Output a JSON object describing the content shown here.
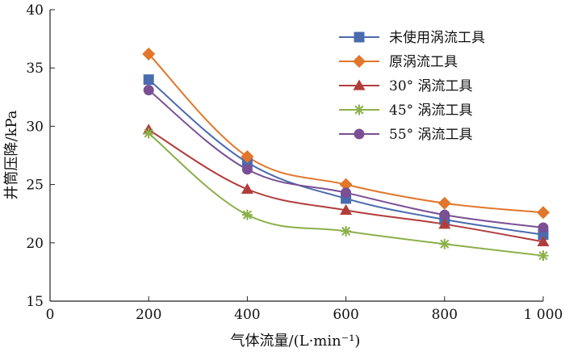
{
  "chart_data": {
    "type": "line",
    "xlabel": "气体流量/(L·min⁻¹)",
    "ylabel": "井筒压降/kPa",
    "xlim": [
      0,
      1000
    ],
    "ylim": [
      15,
      40
    ],
    "xticks": [
      0,
      200,
      400,
      600,
      800,
      1000
    ],
    "xtick_labels": [
      "0",
      "200",
      "400",
      "600",
      "800",
      "1 000"
    ],
    "yticks": [
      15,
      20,
      25,
      30,
      35,
      40
    ],
    "ytick_labels": [
      "15",
      "20",
      "25",
      "30",
      "35",
      "40"
    ],
    "x": [
      200,
      400,
      600,
      800,
      1000
    ],
    "grid": false,
    "legend_position": "top-right",
    "series": [
      {
        "name": "未使用涡流工具",
        "values": [
          34.0,
          26.9,
          23.8,
          22.0,
          20.7
        ],
        "color": "#4a6bae",
        "marker": "square"
      },
      {
        "name": "原涡流工具",
        "values": [
          36.2,
          27.4,
          25.0,
          23.4,
          22.6
        ],
        "color": "#e2762a",
        "marker": "diamond"
      },
      {
        "name": "30° 涡流工具",
        "values": [
          29.7,
          24.6,
          22.8,
          21.6,
          20.1
        ],
        "color": "#b23c3c",
        "marker": "triangle"
      },
      {
        "name": "45° 涡流工具",
        "values": [
          29.4,
          22.4,
          21.0,
          19.9,
          18.9
        ],
        "color": "#8cb04a",
        "marker": "asterisk"
      },
      {
        "name": "55° 涡流工具",
        "values": [
          33.1,
          26.3,
          24.3,
          22.4,
          21.3
        ],
        "color": "#7a4f93",
        "marker": "circle"
      }
    ]
  }
}
